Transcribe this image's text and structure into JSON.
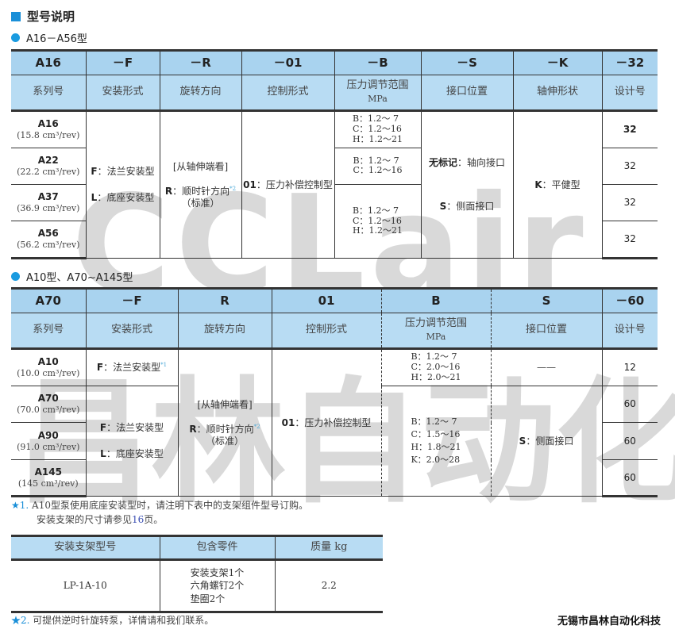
{
  "watermark": {
    "line1": "CCLair",
    "line2": "昌林自动化"
  },
  "heading": "型号说明",
  "section1": {
    "title": "A16－A56型",
    "codes": [
      "A16",
      "－F",
      "－R",
      "－01",
      "－B",
      "－S",
      "－K",
      "－32"
    ],
    "labels": [
      "系列号",
      "安装形式",
      "旋转方向",
      "控制形式",
      "压力调节范围",
      "接口位置",
      "轴伸形状",
      "设计号"
    ],
    "pressure_unit": "MPa",
    "models": [
      {
        "name": "A16",
        "disp": "(15.8 cm³/rev)"
      },
      {
        "name": "A22",
        "disp": "(22.2 cm³/rev)"
      },
      {
        "name": "A37",
        "disp": "(36.9 cm³/rev)"
      },
      {
        "name": "A56",
        "disp": "(56.2 cm³/rev)"
      }
    ],
    "mount": [
      {
        "key": "F",
        "text": "法兰安装型"
      },
      {
        "key": "L",
        "text": "底座安装型"
      }
    ],
    "rotation": {
      "view": "[从轴伸端看]",
      "key": "R",
      "text": "顺时针方向",
      "note": "*2",
      "std": "（标准）"
    },
    "control": {
      "key": "01",
      "text": "压力补偿控制型"
    },
    "pressure": [
      [
        "B：1.2～ 7",
        "C：1.2～16",
        "H：1.2～21"
      ],
      [
        "B：1.2～ 7",
        "C：1.2～16"
      ],
      [
        "B：1.2～ 7",
        "C：1.2～16",
        "H：1.2～21"
      ]
    ],
    "port": [
      {
        "key": "无标记",
        "text": "轴向接口"
      },
      {
        "key": "S",
        "text": "侧面接口"
      }
    ],
    "shaft": {
      "key": "K",
      "text": "平健型"
    },
    "design": [
      "32",
      "32",
      "32",
      "32"
    ]
  },
  "section2": {
    "title": "A10型、A70~A145型",
    "codes": [
      "A70",
      "－F",
      "R",
      "01",
      "B",
      "S",
      "－60"
    ],
    "labels": [
      "系列号",
      "安装形式",
      "旋转方向",
      "控制形式",
      "压力调节范围",
      "接口位置",
      "设计号"
    ],
    "pressure_unit": "MPa",
    "models": [
      {
        "name": "A10",
        "disp": "(10.0 cm³/rev)"
      },
      {
        "name": "A70",
        "disp": "(70.0 cm³/rev)"
      },
      {
        "name": "A90",
        "disp": "(91.0 cm³/rev)"
      },
      {
        "name": "A145",
        "disp": "(145 cm³/rev)"
      }
    ],
    "mount_a10": {
      "key": "F",
      "text": "法兰安装型",
      "note": "*1"
    },
    "mount": [
      {
        "key": "F",
        "text": "法兰安装型"
      },
      {
        "key": "L",
        "text": "底座安装型"
      }
    ],
    "rotation": {
      "view": "[从轴伸端看]",
      "key": "R",
      "text": "顺时针方向",
      "note": "*2",
      "std": "（标准）"
    },
    "control": {
      "key": "01",
      "text": "压力补偿控制型"
    },
    "pressure": [
      [
        "B：1.2～ 7",
        "C：2.0～16",
        "H：2.0～21"
      ],
      [
        "B：1.2～ 7",
        "C：1.5～16",
        "H：1.8～21",
        "K：2.0～28"
      ]
    ],
    "port": [
      {
        "text": "——"
      },
      {
        "key": "S",
        "text": "侧面接口"
      }
    ],
    "design": [
      "12",
      "60",
      "60",
      "60"
    ]
  },
  "footnote1": {
    "star": "★",
    "num": "1.",
    "line1": "A10型泵使用底座安装型时，请注明下表中的支架组件型号订购。",
    "line2_a": "安装支架的尺寸请参见",
    "page": "16",
    "line2_b": "页。"
  },
  "bracket_table": {
    "headers": [
      "安装支架型号",
      "包含零件",
      "质量 kg"
    ],
    "row": {
      "model": "LP-1A-10",
      "parts": [
        "安装支架1个",
        "六角螺钉2个",
        "垫圈2个"
      ],
      "mass": "2.2"
    }
  },
  "footnote2": {
    "star": "★",
    "num": "2.",
    "text": "可提供逆时针旋转泵，详情请和我们联系。"
  },
  "company": "无锡市昌林自动化科技"
}
